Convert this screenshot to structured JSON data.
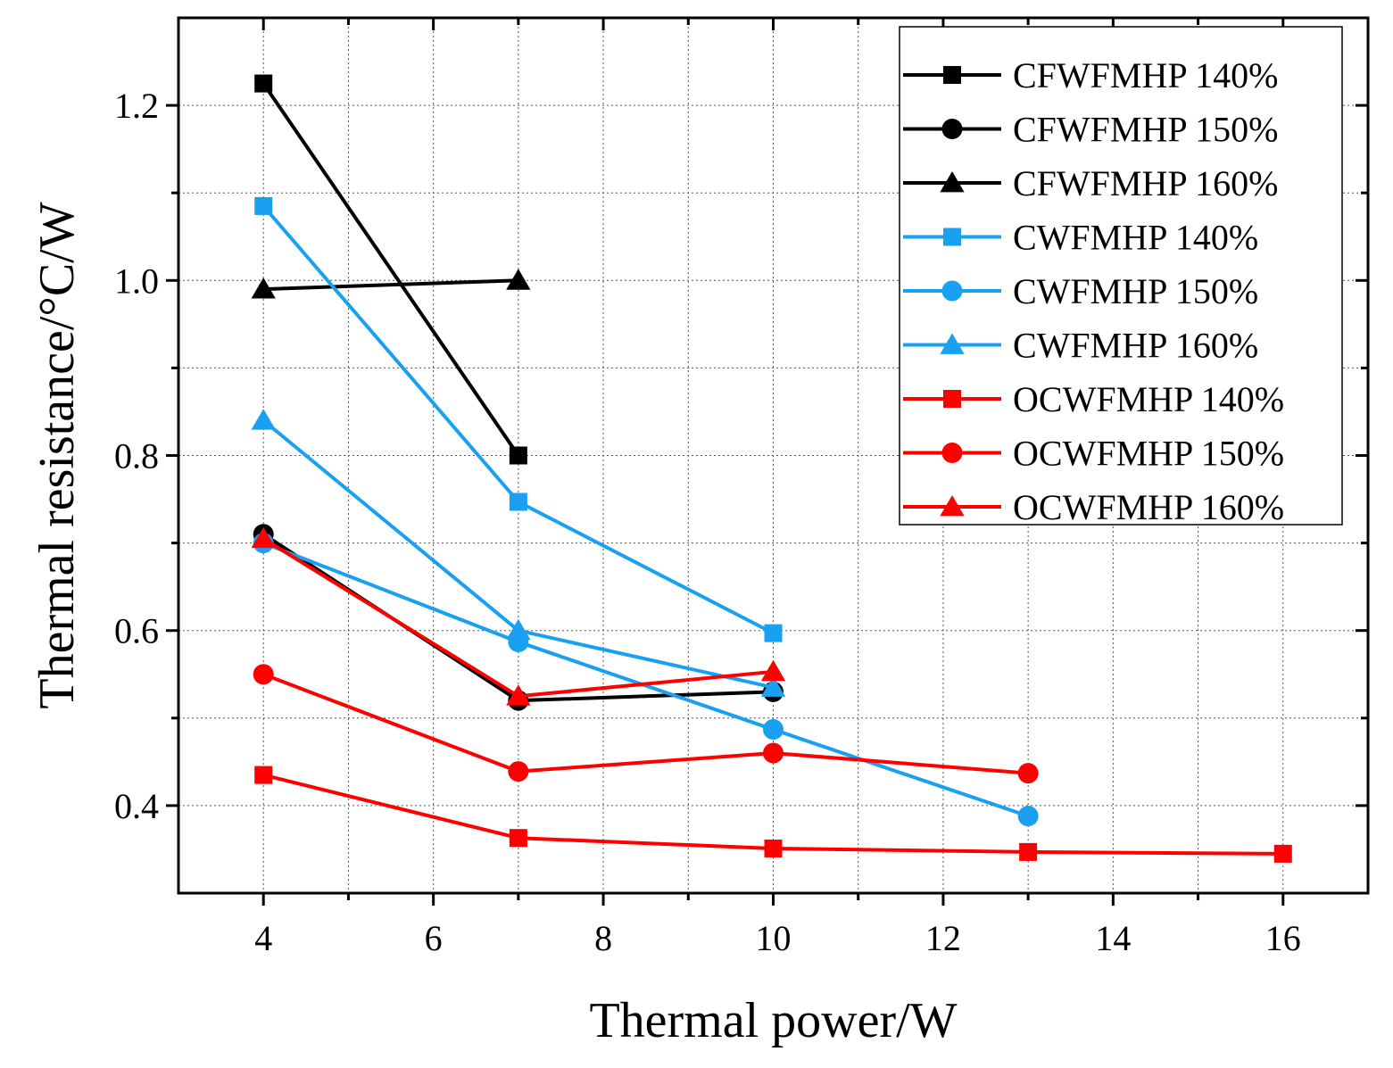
{
  "chart_data": {
    "type": "line",
    "xlabel": "Thermal power/W",
    "ylabel": "Thermal resistance/°C/W",
    "xlim": [
      3,
      17
    ],
    "ylim": [
      0.3,
      1.3
    ],
    "x_ticks": [
      4,
      6,
      8,
      10,
      12,
      14,
      16
    ],
    "x_tick_labels": [
      "4",
      "6",
      "8",
      "10",
      "12",
      "14",
      "16"
    ],
    "x_minor_ticks": [
      3,
      5,
      7,
      9,
      11,
      13,
      15,
      17
    ],
    "y_ticks": [
      0.4,
      0.6,
      0.8,
      1.0,
      1.2
    ],
    "y_tick_labels": [
      "0.4",
      "0.6",
      "0.8",
      "1.0",
      "1.2"
    ],
    "y_minor_ticks": [
      0.3,
      0.5,
      0.7,
      0.9,
      1.1
    ],
    "grid": true,
    "legend_position": "top-right",
    "series": [
      {
        "name": "CFWFMHP 140%",
        "color": "#000000",
        "marker": "square",
        "points": [
          [
            4,
            1.225
          ],
          [
            7,
            0.8
          ]
        ]
      },
      {
        "name": "CFWFMHP 150%",
        "color": "#000000",
        "marker": "circle",
        "points": [
          [
            4,
            0.71
          ],
          [
            7,
            0.52
          ],
          [
            10,
            0.53
          ]
        ]
      },
      {
        "name": "CFWFMHP 160%",
        "color": "#000000",
        "marker": "triangle",
        "points": [
          [
            4,
            0.99
          ],
          [
            7,
            1.0
          ]
        ]
      },
      {
        "name": "CWFMHP 140%",
        "color": "#1aa0f0",
        "marker": "square",
        "points": [
          [
            4,
            1.085
          ],
          [
            7,
            0.747
          ],
          [
            10,
            0.597
          ]
        ]
      },
      {
        "name": "CWFMHP 150%",
        "color": "#1aa0f0",
        "marker": "circle",
        "points": [
          [
            4,
            0.7
          ],
          [
            7,
            0.587
          ],
          [
            10,
            0.487
          ],
          [
            13,
            0.388
          ]
        ]
      },
      {
        "name": "CWFMHP 160%",
        "color": "#1aa0f0",
        "marker": "triangle",
        "points": [
          [
            4,
            0.84
          ],
          [
            7,
            0.6
          ],
          [
            10,
            0.535
          ]
        ]
      },
      {
        "name": "OCWFMHP 140%",
        "color": "#ff0000",
        "marker": "square",
        "points": [
          [
            4,
            0.435
          ],
          [
            7,
            0.363
          ],
          [
            10,
            0.351
          ],
          [
            13,
            0.347
          ],
          [
            16,
            0.345
          ]
        ]
      },
      {
        "name": "OCWFMHP 150%",
        "color": "#ff0000",
        "marker": "circle",
        "points": [
          [
            4,
            0.55
          ],
          [
            7,
            0.439
          ],
          [
            10,
            0.46
          ],
          [
            13,
            0.437
          ]
        ]
      },
      {
        "name": "OCWFMHP 160%",
        "color": "#ff0000",
        "marker": "triangle",
        "points": [
          [
            4,
            0.705
          ],
          [
            7,
            0.525
          ],
          [
            10,
            0.553
          ]
        ]
      }
    ]
  }
}
